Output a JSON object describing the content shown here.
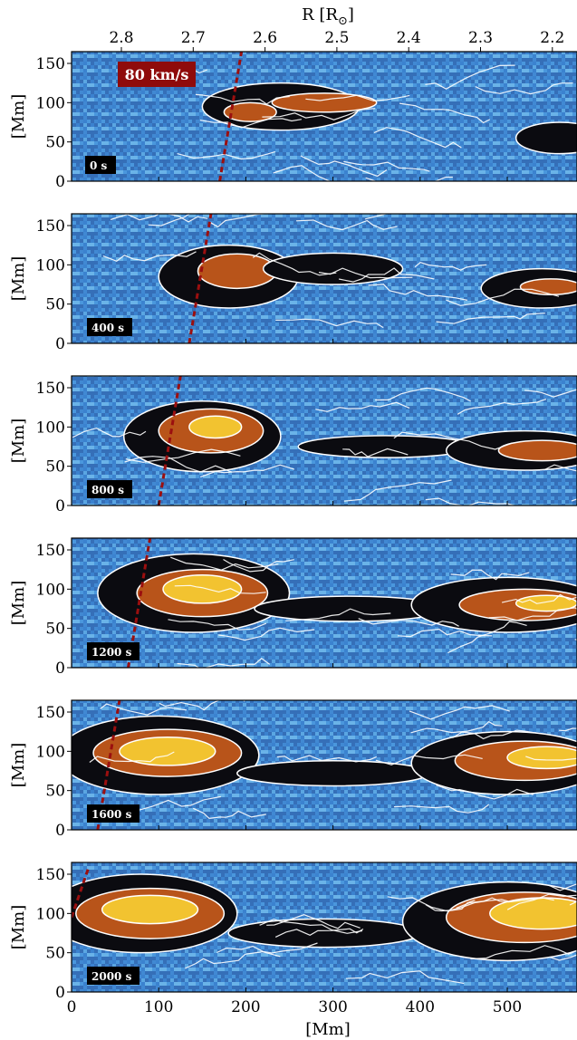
{
  "chart_data": {
    "type": "heatmap",
    "top_axis": {
      "label": "R [R",
      "label_subscript": "⊙",
      "label_close": "]",
      "ticks": [
        "2.8",
        "2.7",
        "2.6",
        "2.5",
        "2.4",
        "2.3",
        "2.2"
      ],
      "tick_values": [
        2.8,
        2.7,
        2.6,
        2.5,
        2.4,
        2.3,
        2.2
      ]
    },
    "x_axis": {
      "label": "[Mm]",
      "ticks": [
        "0",
        "100",
        "200",
        "300",
        "400",
        "500"
      ],
      "tick_values": [
        0,
        100,
        200,
        300,
        400,
        500
      ],
      "range": [
        0,
        580
      ]
    },
    "y_axis": {
      "label": "[Mm]",
      "ticks": [
        "0",
        "50",
        "100",
        "150"
      ],
      "tick_values": [
        0,
        50,
        100,
        150
      ],
      "range": [
        0,
        165
      ]
    },
    "speed_annotation": "80 km/s",
    "colors": {
      "background": "#3f8fd6",
      "dark_core": "#0b0b10",
      "orange": "#b8541a",
      "yellow": "#f2c330",
      "contour": "#ffffff",
      "speed_line": "#9b0f0f",
      "speed_box": "#8f0b0b"
    },
    "panels": [
      {
        "time": "0 s",
        "line": [
          [
            170,
            0
          ],
          [
            195,
            165
          ]
        ],
        "blobs": [
          {
            "cx": 240,
            "cy": 95,
            "rx": 90,
            "ry": 30,
            "level": 2
          },
          {
            "cx": 290,
            "cy": 100,
            "rx": 60,
            "ry": 12,
            "level": 3
          },
          {
            "cx": 205,
            "cy": 88,
            "rx": 30,
            "ry": 12,
            "level": 3
          },
          {
            "cx": 560,
            "cy": 55,
            "rx": 50,
            "ry": 20,
            "level": 2
          }
        ]
      },
      {
        "time": "400 s",
        "line": [
          [
            135,
            0
          ],
          [
            160,
            165
          ]
        ],
        "blobs": [
          {
            "cx": 180,
            "cy": 85,
            "rx": 80,
            "ry": 40,
            "level": 2
          },
          {
            "cx": 190,
            "cy": 92,
            "rx": 45,
            "ry": 22,
            "level": 3
          },
          {
            "cx": 300,
            "cy": 95,
            "rx": 80,
            "ry": 20,
            "level": 2
          },
          {
            "cx": 540,
            "cy": 70,
            "rx": 70,
            "ry": 25,
            "level": 2
          },
          {
            "cx": 550,
            "cy": 72,
            "rx": 35,
            "ry": 10,
            "level": 3
          }
        ]
      },
      {
        "time": "800 s",
        "line": [
          [
            100,
            0
          ],
          [
            125,
            165
          ]
        ],
        "blobs": [
          {
            "cx": 150,
            "cy": 88,
            "rx": 90,
            "ry": 45,
            "level": 2
          },
          {
            "cx": 160,
            "cy": 95,
            "rx": 60,
            "ry": 28,
            "level": 3
          },
          {
            "cx": 165,
            "cy": 100,
            "rx": 30,
            "ry": 14,
            "level": 4
          },
          {
            "cx": 360,
            "cy": 75,
            "rx": 100,
            "ry": 14,
            "level": 2
          },
          {
            "cx": 520,
            "cy": 70,
            "rx": 90,
            "ry": 25,
            "level": 2
          },
          {
            "cx": 540,
            "cy": 70,
            "rx": 50,
            "ry": 13,
            "level": 3
          }
        ]
      },
      {
        "time": "1200 s",
        "line": [
          [
            65,
            0
          ],
          [
            90,
            165
          ]
        ],
        "blobs": [
          {
            "cx": 140,
            "cy": 95,
            "rx": 110,
            "ry": 50,
            "level": 2
          },
          {
            "cx": 150,
            "cy": 95,
            "rx": 75,
            "ry": 30,
            "level": 3
          },
          {
            "cx": 150,
            "cy": 100,
            "rx": 45,
            "ry": 18,
            "level": 4
          },
          {
            "cx": 320,
            "cy": 75,
            "rx": 110,
            "ry": 16,
            "level": 2
          },
          {
            "cx": 500,
            "cy": 80,
            "rx": 110,
            "ry": 35,
            "level": 2
          },
          {
            "cx": 520,
            "cy": 80,
            "rx": 75,
            "ry": 20,
            "level": 3
          },
          {
            "cx": 545,
            "cy": 82,
            "rx": 35,
            "ry": 10,
            "level": 4
          }
        ]
      },
      {
        "time": "1600 s",
        "line": [
          [
            30,
            0
          ],
          [
            55,
            165
          ]
        ],
        "blobs": [
          {
            "cx": 100,
            "cy": 95,
            "rx": 115,
            "ry": 50,
            "level": 2
          },
          {
            "cx": 110,
            "cy": 98,
            "rx": 85,
            "ry": 30,
            "level": 3
          },
          {
            "cx": 110,
            "cy": 100,
            "rx": 55,
            "ry": 18,
            "level": 4
          },
          {
            "cx": 300,
            "cy": 72,
            "rx": 110,
            "ry": 16,
            "level": 2
          },
          {
            "cx": 500,
            "cy": 85,
            "rx": 110,
            "ry": 40,
            "level": 2
          },
          {
            "cx": 520,
            "cy": 88,
            "rx": 80,
            "ry": 25,
            "level": 3
          },
          {
            "cx": 545,
            "cy": 92,
            "rx": 45,
            "ry": 14,
            "level": 4
          }
        ]
      },
      {
        "time": "2000 s",
        "line": [
          [
            0,
            95
          ],
          [
            20,
            160
          ]
        ],
        "blobs": [
          {
            "cx": 80,
            "cy": 100,
            "rx": 110,
            "ry": 50,
            "level": 2
          },
          {
            "cx": 90,
            "cy": 100,
            "rx": 85,
            "ry": 32,
            "level": 3
          },
          {
            "cx": 90,
            "cy": 105,
            "rx": 55,
            "ry": 18,
            "level": 4
          },
          {
            "cx": 290,
            "cy": 75,
            "rx": 110,
            "ry": 18,
            "level": 2
          },
          {
            "cx": 500,
            "cy": 90,
            "rx": 120,
            "ry": 50,
            "level": 2
          },
          {
            "cx": 520,
            "cy": 95,
            "rx": 90,
            "ry": 32,
            "level": 3
          },
          {
            "cx": 540,
            "cy": 100,
            "rx": 60,
            "ry": 20,
            "level": 4
          }
        ]
      }
    ]
  }
}
